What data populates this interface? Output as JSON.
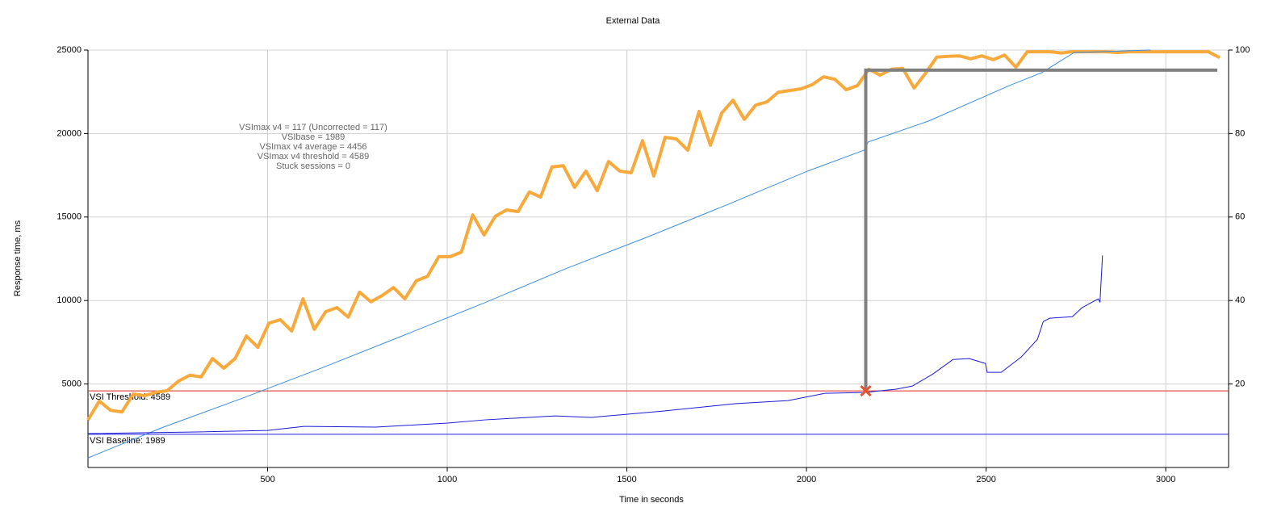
{
  "chart_data": {
    "type": "line",
    "title": "External Data",
    "xlabel": "Time in seconds",
    "ylabel": "Response time, ms",
    "xlim": [
      0,
      3175
    ],
    "xticks": [
      500,
      1000,
      1500,
      2000,
      2500,
      3000
    ],
    "ylim": [
      0,
      25000
    ],
    "yticks": [
      5000,
      10000,
      15000,
      20000,
      25000
    ],
    "y2lim": [
      0,
      100
    ],
    "y2ticks": [
      20,
      40,
      60,
      80,
      100
    ],
    "grid": true,
    "annotation": [
      "VSImax v4 = 117 (Uncorrected = 117)",
      "VSIbase = 1989",
      "VSImax v4 average = 4456",
      "VSImax v4 threshold = 4589",
      "Stuck sessions = 0"
    ],
    "threshold": {
      "value": 4589,
      "label": "VSI Threshold: 4589",
      "color": "#e02020"
    },
    "baseline": {
      "value": 1989,
      "label": "VSI Baseline: 1989",
      "color": "#2020e0"
    },
    "crosshair": {
      "x": 2165,
      "y": 4589,
      "y2": 95.2,
      "color": "#808080",
      "marker_color": "#e8532a"
    },
    "series": [
      {
        "color": "#f7a93c",
        "axis": "y2",
        "linewidth": 4,
        "x": [
          0,
          31.5,
          63,
          94.5,
          126,
          157.5,
          189,
          220.5,
          252,
          283.5,
          315,
          346.5,
          378,
          409.5,
          441,
          472.5,
          504,
          535.5,
          567,
          598.5,
          630,
          661.5,
          693,
          724.5,
          756,
          787.5,
          819,
          850.5,
          882,
          913.5,
          945,
          976.5,
          1008,
          1039.5,
          1071,
          1102.5,
          1134,
          1165.5,
          1197,
          1228.5,
          1260,
          1291.5,
          1323,
          1354.5,
          1386,
          1417.5,
          1449,
          1480.5,
          1512,
          1543.5,
          1575,
          1606.5,
          1638,
          1669.5,
          1701,
          1732.5,
          1764,
          1795.5,
          1827,
          1858.5,
          1890,
          1921.5,
          1953,
          1984.5,
          2016,
          2047.5,
          2079,
          2110.5,
          2142,
          2173.5,
          2205,
          2236.5,
          2268,
          2299.5,
          2331,
          2362.5,
          2394,
          2425.5,
          2457,
          2488.5,
          2520,
          2551.5,
          2583,
          2614.5,
          2646,
          2677.5,
          2709,
          2740.5,
          2772,
          2803.5,
          2835,
          2866.5,
          2898,
          2929.5,
          2961,
          2992.5,
          3024,
          3055.5,
          3087,
          3118.5,
          3150
        ],
        "values": [
          11.4,
          15.9,
          13.7,
          13.3,
          17.6,
          17.2,
          18.0,
          18.4,
          20.7,
          22.1,
          21.7,
          26.1,
          23.8,
          26.1,
          31.5,
          28.8,
          34.6,
          35.4,
          32.7,
          40.4,
          33.1,
          37.3,
          38.3,
          36.0,
          42.0,
          39.7,
          41.2,
          43.1,
          40.4,
          44.7,
          45.8,
          50.5,
          50.5,
          51.6,
          60.5,
          55.7,
          60.2,
          61.7,
          61.3,
          66.0,
          64.8,
          72.0,
          72.3,
          67.1,
          71.0,
          66.3,
          73.3,
          71.0,
          70.6,
          78.3,
          69.8,
          79.1,
          78.7,
          76.0,
          85.3,
          77.2,
          84.9,
          88.0,
          83.4,
          86.8,
          87.6,
          89.9,
          90.3,
          90.7,
          91.7,
          93.6,
          93.0,
          90.5,
          91.5,
          95.4,
          94.0,
          95.4,
          95.6,
          90.9,
          94.4,
          98.3,
          98.5,
          98.6,
          97.9,
          98.6,
          97.7,
          98.8,
          95.9,
          99.6,
          99.6,
          99.6,
          99.3,
          99.6,
          99.6,
          99.6,
          99.6,
          99.4,
          99.6,
          99.6,
          99.6,
          99.6,
          99.6,
          99.6,
          99.6,
          99.6,
          98.2
        ]
      },
      {
        "color": "#3a8ee6",
        "axis": "y2",
        "linewidth": 1,
        "x": [
          0,
          205,
          430,
          655,
          880,
          1105,
          1329,
          1554,
          1778,
          2003,
          2160,
          2172,
          2340,
          2565,
          2655,
          2745,
          2958
        ],
        "values": [
          2.3,
          9.5,
          16.6,
          24.0,
          31.7,
          39.5,
          47.6,
          55.1,
          62.9,
          71.0,
          76.0,
          78.0,
          83.0,
          91.5,
          94.6,
          99.4,
          100
        ]
      },
      {
        "color": "#1a1ad6",
        "axis": "y",
        "linewidth": 1,
        "x": [
          0,
          302,
          500,
          601,
          801,
          1001,
          1104,
          1300,
          1401,
          1601,
          1801,
          1949,
          2051,
          2160,
          2250,
          2295,
          2352,
          2408,
          2453,
          2498,
          2503,
          2542,
          2598,
          2643,
          2659,
          2677,
          2740,
          2767,
          2812,
          2817,
          2824
        ],
        "values": [
          2030,
          2130,
          2220,
          2460,
          2420,
          2660,
          2850,
          3090,
          3000,
          3380,
          3820,
          4010,
          4440,
          4490,
          4690,
          4880,
          5600,
          6470,
          6520,
          6230,
          5700,
          5700,
          6620,
          7680,
          8740,
          8940,
          9030,
          9570,
          10100,
          9900,
          12700
        ]
      }
    ]
  }
}
